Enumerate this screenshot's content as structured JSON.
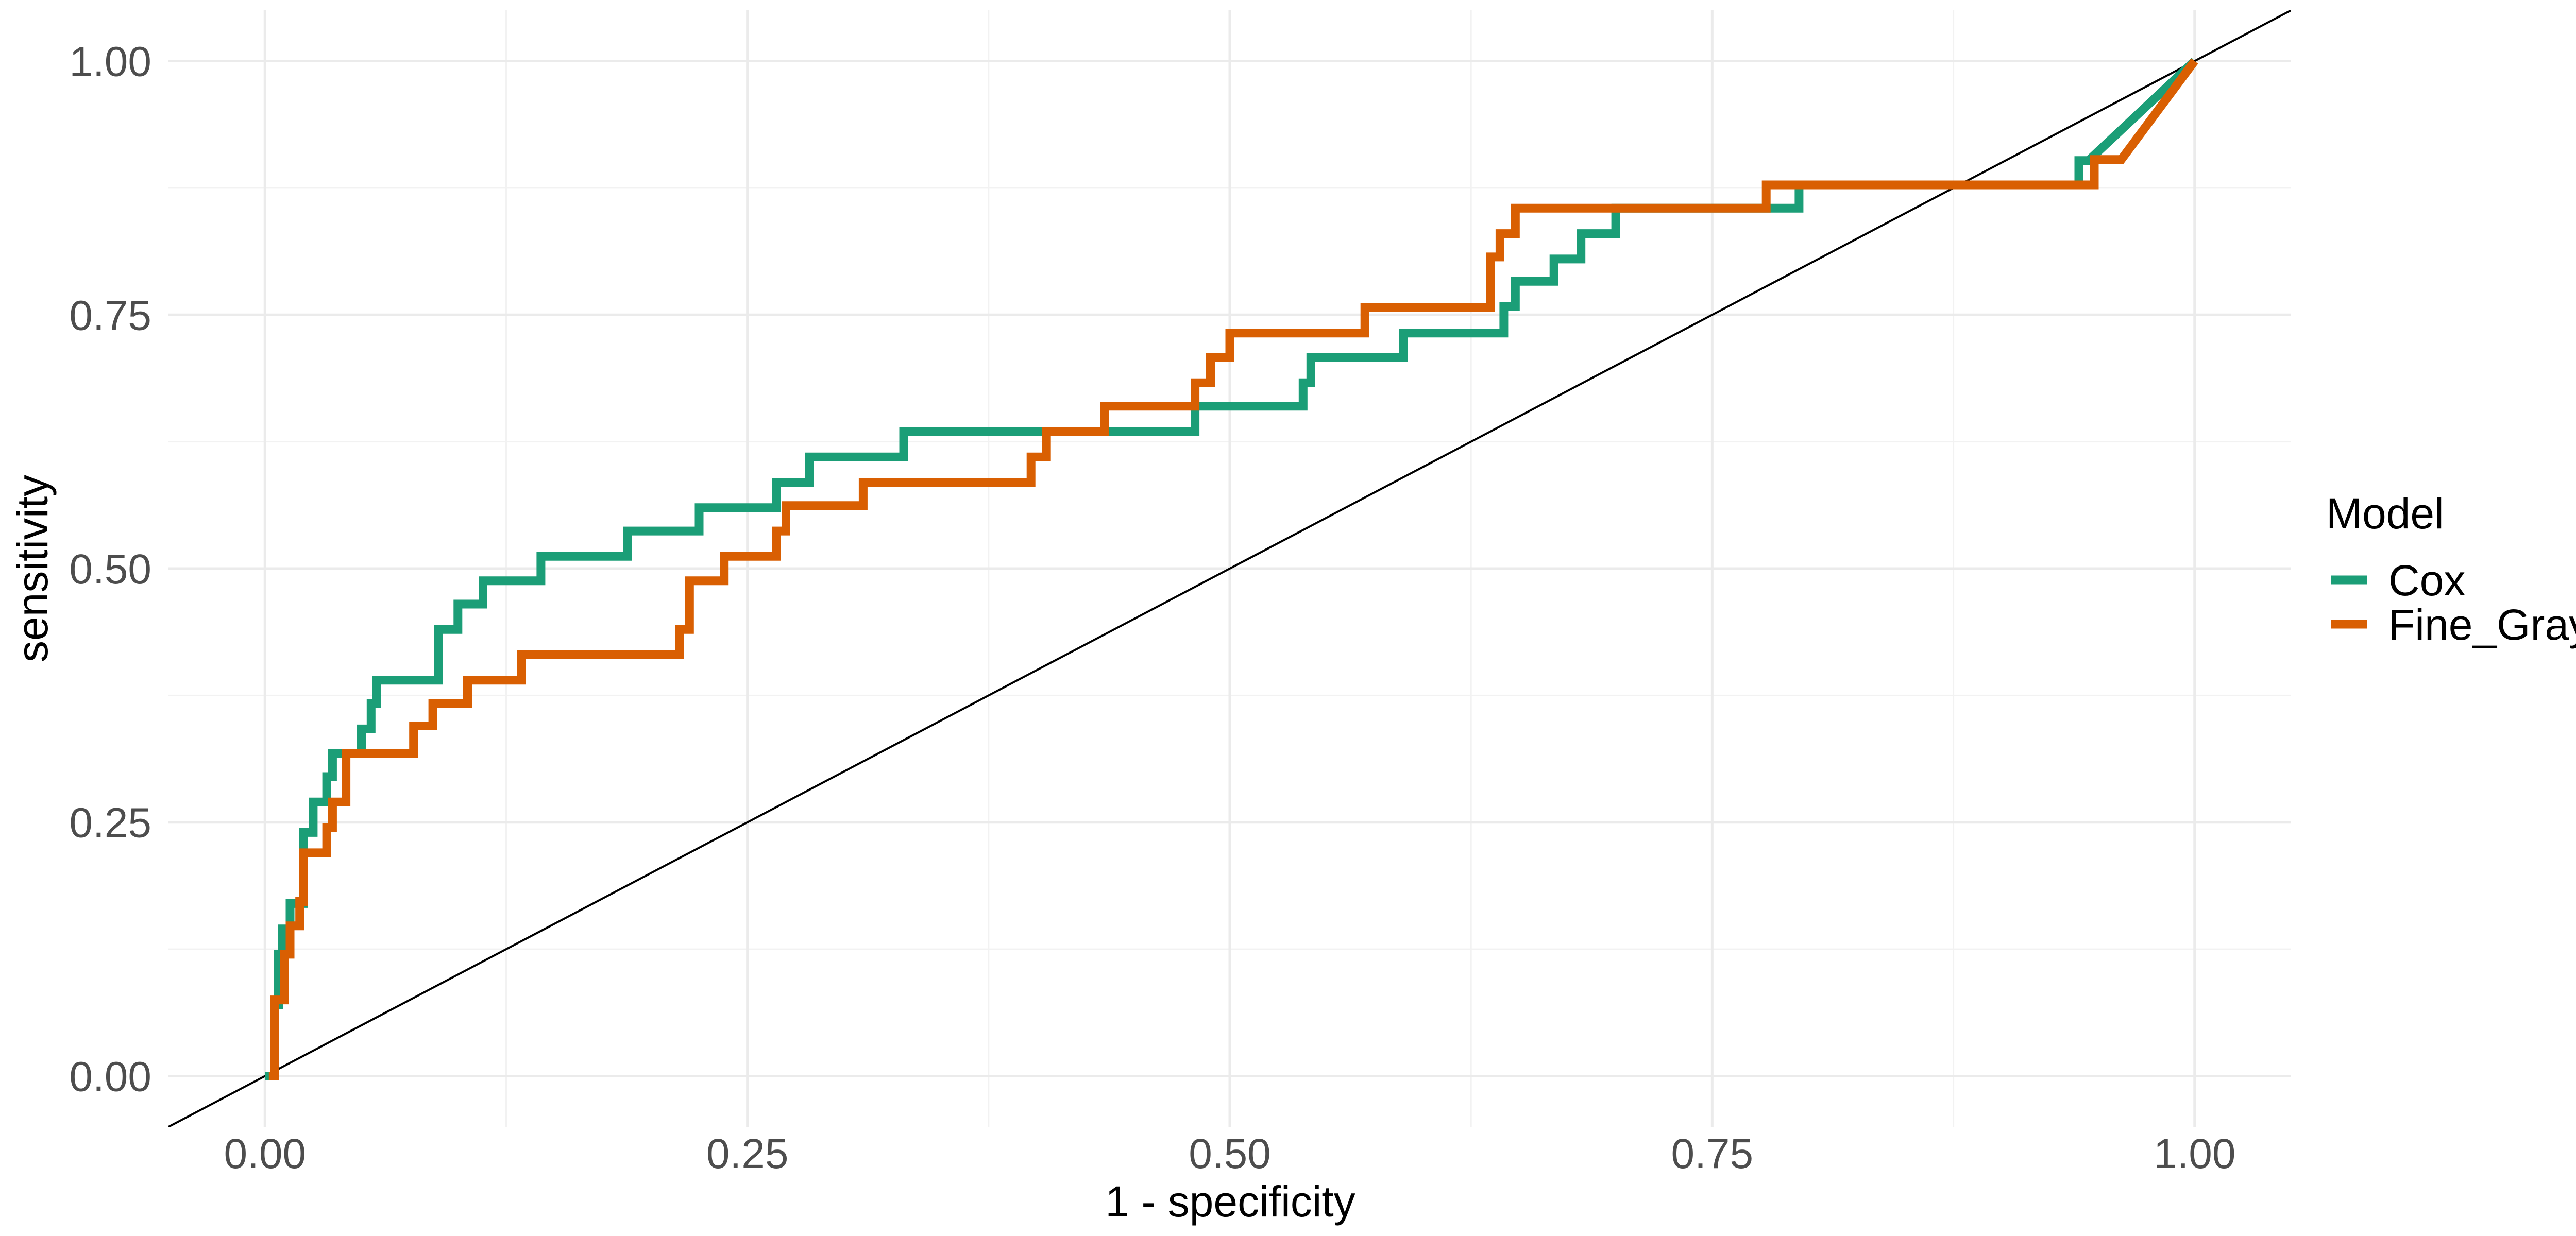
{
  "chart_data": {
    "type": "line",
    "title": "",
    "xlabel": "1 - specificity",
    "ylabel": "sensitivity",
    "xlim": [
      -0.05,
      1.05
    ],
    "ylim": [
      -0.05,
      1.05
    ],
    "x_ticks": [
      {
        "value": 0,
        "label": "0.00"
      },
      {
        "value": 0.25,
        "label": "0.25"
      },
      {
        "value": 0.5,
        "label": "0.50"
      },
      {
        "value": 0.75,
        "label": "0.75"
      },
      {
        "value": 1,
        "label": "1.00"
      }
    ],
    "y_ticks": [
      {
        "value": 0,
        "label": "0.00"
      },
      {
        "value": 0.25,
        "label": "0.25"
      },
      {
        "value": 0.5,
        "label": "0.50"
      },
      {
        "value": 0.75,
        "label": "0.75"
      },
      {
        "value": 1,
        "label": "1.00"
      }
    ],
    "grid": true,
    "legend": {
      "title": "Model",
      "position": "right",
      "entries": [
        {
          "name": "Cox",
          "color": "#1b9e77"
        },
        {
          "name": "Fine_Gray",
          "color": "#d95f02"
        }
      ]
    },
    "reference_line": {
      "from": [
        -0.05,
        -0.05
      ],
      "to": [
        1.05,
        1.05
      ],
      "color": "#000000"
    },
    "series": [
      {
        "name": "Cox",
        "color": "#1b9e77",
        "x": [
          0,
          0.005,
          0.005,
          0.007,
          0.007,
          0.009,
          0.009,
          0.013,
          0.013,
          0.02,
          0.02,
          0.025,
          0.025,
          0.032,
          0.032,
          0.035,
          0.035,
          0.05,
          0.05,
          0.055,
          0.055,
          0.058,
          0.058,
          0.09,
          0.09,
          0.1,
          0.1,
          0.113,
          0.113,
          0.143,
          0.143,
          0.188,
          0.188,
          0.225,
          0.225,
          0.265,
          0.265,
          0.282,
          0.282,
          0.331,
          0.331,
          0.482,
          0.482,
          0.538,
          0.538,
          0.542,
          0.542,
          0.59,
          0.59,
          0.642,
          0.642,
          0.648,
          0.648,
          0.668,
          0.668,
          0.682,
          0.682,
          0.7,
          0.7,
          0.795,
          0.795,
          0.94,
          0.94,
          0.945,
          0.945,
          1
        ],
        "y": [
          0,
          0,
          0.07,
          0.07,
          0.12,
          0.12,
          0.145,
          0.145,
          0.17,
          0.17,
          0.24,
          0.24,
          0.27,
          0.27,
          0.295,
          0.295,
          0.318,
          0.318,
          0.342,
          0.342,
          0.367,
          0.367,
          0.39,
          0.39,
          0.44,
          0.44,
          0.465,
          0.465,
          0.488,
          0.488,
          0.512,
          0.512,
          0.537,
          0.537,
          0.56,
          0.56,
          0.585,
          0.585,
          0.61,
          0.61,
          0.635,
          0.635,
          0.66,
          0.66,
          0.683,
          0.683,
          0.708,
          0.708,
          0.732,
          0.732,
          0.758,
          0.758,
          0.783,
          0.783,
          0.805,
          0.805,
          0.83,
          0.83,
          0.855,
          0.855,
          0.878,
          0.878,
          0.902,
          0.902,
          0.902,
          1
        ]
      },
      {
        "name": "Fine_Gray",
        "color": "#d95f02",
        "x": [
          0.002,
          0.005,
          0.005,
          0.01,
          0.01,
          0.013,
          0.013,
          0.018,
          0.018,
          0.02,
          0.02,
          0.032,
          0.032,
          0.035,
          0.035,
          0.042,
          0.042,
          0.077,
          0.077,
          0.087,
          0.087,
          0.105,
          0.105,
          0.133,
          0.133,
          0.215,
          0.215,
          0.22,
          0.22,
          0.238,
          0.238,
          0.265,
          0.265,
          0.27,
          0.27,
          0.31,
          0.31,
          0.397,
          0.397,
          0.405,
          0.405,
          0.435,
          0.435,
          0.482,
          0.482,
          0.49,
          0.49,
          0.5,
          0.5,
          0.57,
          0.57,
          0.635,
          0.635,
          0.64,
          0.64,
          0.648,
          0.648,
          0.778,
          0.778,
          0.795,
          0.795,
          0.948,
          0.948,
          0.962,
          1
        ],
        "y": [
          0,
          0,
          0.075,
          0.075,
          0.12,
          0.12,
          0.148,
          0.148,
          0.172,
          0.172,
          0.22,
          0.22,
          0.245,
          0.245,
          0.27,
          0.27,
          0.318,
          0.318,
          0.345,
          0.345,
          0.367,
          0.367,
          0.39,
          0.39,
          0.415,
          0.415,
          0.44,
          0.44,
          0.488,
          0.488,
          0.512,
          0.512,
          0.537,
          0.537,
          0.562,
          0.562,
          0.585,
          0.585,
          0.61,
          0.61,
          0.635,
          0.635,
          0.66,
          0.66,
          0.683,
          0.683,
          0.708,
          0.708,
          0.732,
          0.732,
          0.757,
          0.757,
          0.807,
          0.807,
          0.83,
          0.83,
          0.855,
          0.855,
          0.878,
          0.878,
          0.878,
          0.878,
          0.903,
          0.903,
          1
        ]
      }
    ]
  }
}
